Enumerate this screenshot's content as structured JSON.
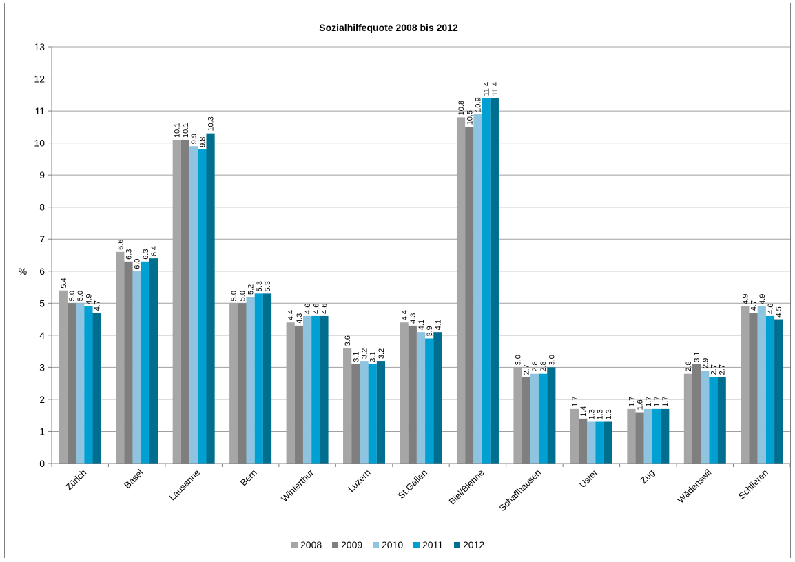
{
  "chart_data": {
    "type": "bar",
    "title": "Sozialhilfequote 2008 bis 2012",
    "ylabel": "%",
    "xlabel": "",
    "ylim": [
      0,
      13
    ],
    "yticks": [
      0,
      1,
      2,
      3,
      4,
      5,
      6,
      7,
      8,
      9,
      10,
      11,
      12,
      13
    ],
    "grid": true,
    "legend_position": "bottom",
    "categories": [
      "Zürich",
      "Basel",
      "Lausanne",
      "Bern",
      "Winterthur",
      "Luzern",
      "St.Gallen",
      "Biel/Bienne",
      "Schaffhausen",
      "Uster",
      "Zug",
      "Wädenswil",
      "Schlieren"
    ],
    "series": [
      {
        "name": "2008",
        "color": "#a6a6a6",
        "values": [
          5.4,
          6.6,
          10.1,
          5.0,
          4.4,
          3.6,
          4.4,
          10.8,
          3.0,
          1.7,
          1.7,
          2.8,
          4.9
        ]
      },
      {
        "name": "2009",
        "color": "#7f7f7f",
        "values": [
          5.0,
          6.3,
          10.1,
          5.0,
          4.3,
          3.1,
          4.3,
          10.5,
          2.7,
          1.4,
          1.6,
          3.1,
          4.7
        ]
      },
      {
        "name": "2010",
        "color": "#8fc4e0",
        "values": [
          5.0,
          6.0,
          9.9,
          5.2,
          4.6,
          3.2,
          4.1,
          10.9,
          2.8,
          1.3,
          1.7,
          2.9,
          4.9
        ]
      },
      {
        "name": "2011",
        "color": "#00a0d2",
        "values": [
          4.9,
          6.3,
          9.8,
          5.3,
          4.6,
          3.1,
          3.9,
          11.4,
          2.8,
          1.3,
          1.7,
          2.7,
          4.6
        ]
      },
      {
        "name": "2012",
        "color": "#006e8f",
        "values": [
          4.7,
          6.4,
          10.3,
          5.3,
          4.6,
          3.2,
          4.1,
          11.4,
          3.0,
          1.3,
          1.7,
          2.7,
          4.5
        ]
      }
    ]
  }
}
